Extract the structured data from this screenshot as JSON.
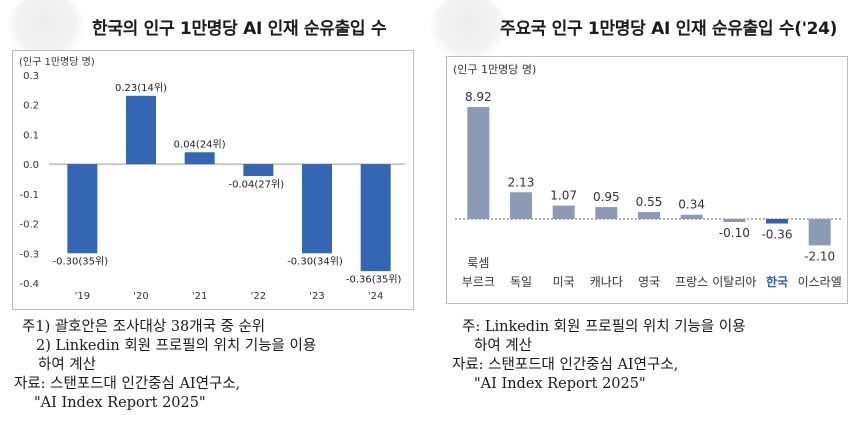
{
  "left": {
    "title": "한국의 인구 1만명당 AI 인재 순유출입 수",
    "unit": "(인구 1만명당 명)",
    "notes": [
      "주1) 괄호안은 조사대상 38개국 중 순위",
      "  2) Linkedin 회원 프로필의 위치 기능을 이용",
      "     하여 계산",
      "자료: 스탠포드대 인간중심 AI연구소,",
      "     \"AI Index Report 2025\""
    ]
  },
  "right": {
    "title": "주요국 인구 1만명당 AI 인재 순유출입 수('24)",
    "unit": "(인구 1만명당 명)",
    "notes": [
      "주: Linkedin 회원 프로필의 위치 기능을 이용",
      "    하여 계산",
      "자료: 스탠포드대 인간중심 AI연구소,",
      "     \"AI Index Report 2025\""
    ]
  },
  "chart_data": [
    {
      "type": "bar",
      "title": "한국의 인구 1만명당 AI 인재 순유출입 수",
      "ylabel": "(인구 1만명당 명)",
      "categories": [
        "'19",
        "'20",
        "'21",
        "'22",
        "'23",
        "'24"
      ],
      "values": [
        -0.3,
        0.23,
        0.04,
        -0.04,
        -0.3,
        -0.36
      ],
      "data_labels": [
        "-0.30(35위)",
        "0.23(14위)",
        "0.04(24위)",
        "-0.04(27위)",
        "-0.30(34위)",
        "-0.36(35위)"
      ],
      "yticks": [
        "0.3",
        "0.2",
        "0.1",
        "0.0",
        "-0.1",
        "-0.2",
        "-0.3",
        "-0.4"
      ],
      "ylim": [
        -0.4,
        0.3
      ],
      "grid": false,
      "color": "#3466b4"
    },
    {
      "type": "bar",
      "title": "주요국 인구 1만명당 AI 인재 순유출입 수('24)",
      "ylabel": "(인구 1만명당 명)",
      "categories": [
        [
          "룩셈",
          "부르크"
        ],
        [
          "독일"
        ],
        [
          "미국"
        ],
        [
          "캐나다"
        ],
        [
          "영국"
        ],
        [
          "프랑스"
        ],
        [
          "이탈리아"
        ],
        [
          "한국"
        ],
        [
          "이스라엘"
        ]
      ],
      "values": [
        8.92,
        2.13,
        1.07,
        0.95,
        0.55,
        0.34,
        -0.1,
        -0.36,
        -2.1
      ],
      "data_labels": [
        "8.92",
        "2.13",
        "1.07",
        "0.95",
        "0.55",
        "0.34",
        "-0.10",
        "-0.36",
        "-2.10"
      ],
      "highlight": "한국",
      "grid": false,
      "color": "#8c9ab5",
      "highlight_color": "#2f5fae"
    }
  ]
}
